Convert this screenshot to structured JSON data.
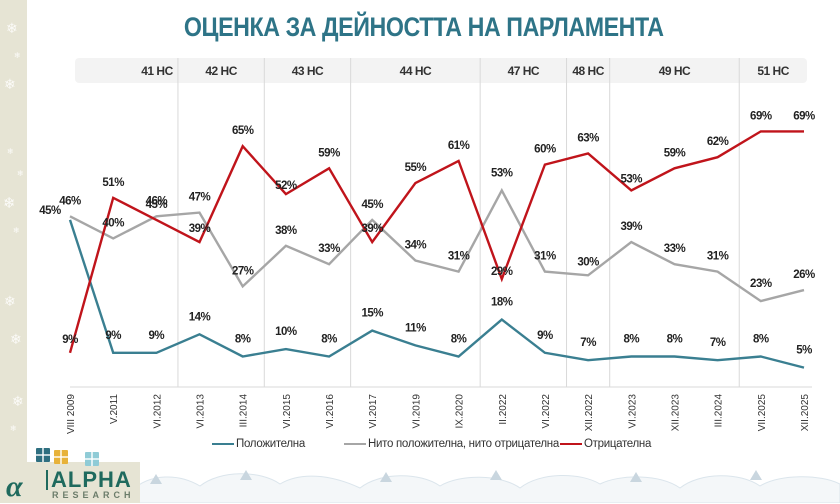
{
  "title": "ОЦЕНКА ЗА ДЕЙНОСТТА НА ПАРЛАМЕНТА",
  "parliaments": [
    {
      "label": "41 НС",
      "from": 0,
      "to": 2
    },
    {
      "label": "42 НС",
      "from": 3,
      "to": 4
    },
    {
      "label": "43 НС",
      "from": 5,
      "to": 6
    },
    {
      "label": "44 НС",
      "from": 7,
      "to": 9
    },
    {
      "label": "47 НС",
      "from": 10,
      "to": 11
    },
    {
      "label": "48 НС",
      "from": 12,
      "to": 12
    },
    {
      "label": "49 НС",
      "from": 13,
      "to": 15
    },
    {
      "label": "51 НС",
      "from": 16,
      "to": 17
    }
  ],
  "logo": {
    "mark": "α",
    "name": "ALPHA",
    "sub": "RESEARCH"
  },
  "chart_data": {
    "type": "line",
    "title": "ОЦЕНКА ЗА ДЕЙНОСТТА НА ПАРЛАМЕНТА",
    "xlabel": "",
    "ylabel": "",
    "ylim": [
      0,
      75
    ],
    "grid": false,
    "legend_position": "bottom",
    "categories": [
      "VIII 2009",
      "V.2011",
      "VI.2012",
      "VI.2013",
      "III.2014",
      "VI.2015",
      "VI.2016",
      "VI.2017",
      "VI.2019",
      "IX.2020",
      "II.2022",
      "VI.2022",
      "XII.2022",
      "VI.2023",
      "XII.2023",
      "III.2024",
      "VII.2025",
      "XII.2025"
    ],
    "series": [
      {
        "name": "Положителна",
        "color": "#3a7f91",
        "values": [
          45,
          9,
          9,
          14,
          8,
          10,
          8,
          15,
          11,
          8,
          18,
          9,
          7,
          8,
          8,
          7,
          8,
          5
        ]
      },
      {
        "name": "Нито положителна, нито отрицателна",
        "color": "#a6a6a6",
        "values": [
          46,
          40,
          46,
          47,
          27,
          38,
          33,
          45,
          34,
          31,
          53,
          31,
          30,
          39,
          33,
          31,
          23,
          26
        ]
      },
      {
        "name": "Отрицателна",
        "color": "#c0141b",
        "values": [
          9,
          51,
          45,
          39,
          65,
          52,
          59,
          39,
          55,
          61,
          29,
          60,
          63,
          53,
          59,
          62,
          69,
          69
        ]
      }
    ],
    "value_suffix": "%"
  }
}
